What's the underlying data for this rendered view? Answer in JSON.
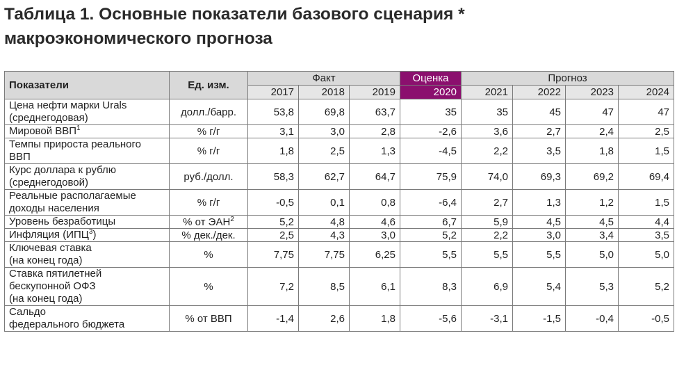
{
  "title": {
    "line1": "Таблица 1. Основные показатели базового сценария *",
    "line2": "макроэкономического прогноза"
  },
  "colors": {
    "header_bg": "#d9d9d9",
    "accent": "#8b0f6e",
    "border": "#7a7a7a"
  },
  "header": {
    "indicator": "Показатели",
    "unit": "Ед. изм.",
    "groups": {
      "fact": "Факт",
      "estimate": "Оценка",
      "forecast": "Прогноз"
    },
    "years": [
      "2017",
      "2018",
      "2019",
      "2020",
      "2021",
      "2022",
      "2023",
      "2024"
    ]
  },
  "rows": [
    {
      "lines": [
        "Цена нефти марки Urals",
        "(среднегодовая)"
      ],
      "unit": "долл./барр.",
      "values": [
        "53,8",
        "69,8",
        "63,7",
        "35",
        "35",
        "45",
        "47",
        "47"
      ]
    },
    {
      "lines": [
        "Мировой ВВП"
      ],
      "sup": "1",
      "unit": "% г/г",
      "values": [
        "3,1",
        "3,0",
        "2,8",
        "-2,6",
        "3,6",
        "2,7",
        "2,4",
        "2,5"
      ]
    },
    {
      "lines": [
        "Темпы прироста реального",
        "ВВП"
      ],
      "unit": "% г/г",
      "values": [
        "1,8",
        "2,5",
        "1,3",
        "-4,5",
        "2,2",
        "3,5",
        "1,8",
        "1,5"
      ]
    },
    {
      "lines": [
        "Курс доллара к рублю",
        "(среднегодовой)"
      ],
      "unit": "руб./долл.",
      "values": [
        "58,3",
        "62,7",
        "64,7",
        "75,9",
        "74,0",
        "69,3",
        "69,2",
        "69,4"
      ]
    },
    {
      "lines": [
        "Реальные располагаемые",
        "доходы населения"
      ],
      "unit": "% г/г",
      "values": [
        "-0,5",
        "0,1",
        "0,8",
        "-6,4",
        "2,7",
        "1,3",
        "1,2",
        "1,5"
      ]
    },
    {
      "lines": [
        "Уровень безработицы"
      ],
      "unit": "% от ЭАН",
      "unit_sup": "2",
      "values": [
        "5,2",
        "4,8",
        "4,6",
        "6,7",
        "5,9",
        "4,5",
        "4,5",
        "4,4"
      ]
    },
    {
      "lines": [
        "Инфляция (ИПЦ"
      ],
      "sup": "3",
      "suffix": ")",
      "unit": "% дек./дек.",
      "values": [
        "2,5",
        "4,3",
        "3,0",
        "5,2",
        "2,2",
        "3,0",
        "3,4",
        "3,5"
      ]
    },
    {
      "lines": [
        "Ключевая ставка",
        "(на конец года)"
      ],
      "unit": "%",
      "values": [
        "7,75",
        "7,75",
        "6,25",
        "5,5",
        "5,5",
        "5,5",
        "5,0",
        "5,0"
      ]
    },
    {
      "lines": [
        "Ставка пятилетней",
        "бескупонной ОФЗ",
        "(на конец года)"
      ],
      "unit": "%",
      "values": [
        "7,2",
        "8,5",
        "6,1",
        "8,3",
        "6,9",
        "5,4",
        "5,3",
        "5,2"
      ]
    },
    {
      "lines": [
        "Сальдо",
        "федерального бюджета"
      ],
      "unit": "% от ВВП",
      "values": [
        "-1,4",
        "2,6",
        "1,8",
        "-5,6",
        "-3,1",
        "-1,5",
        "-0,4",
        "-0,5"
      ]
    }
  ]
}
